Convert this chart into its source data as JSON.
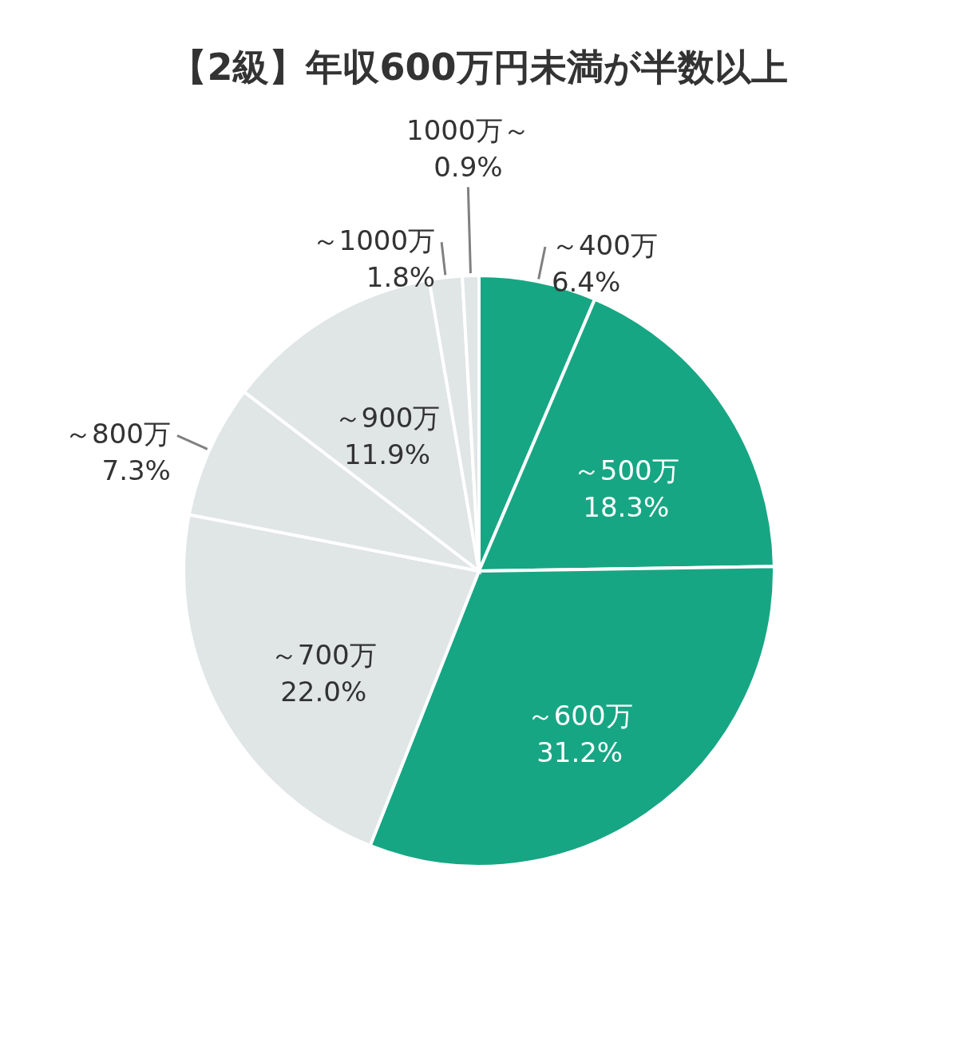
{
  "chart_data": {
    "type": "pie",
    "title": "【2級】年収600万円未満が半数以上",
    "categories": [
      "～400万",
      "～500万",
      "～600万",
      "～700万",
      "～800万",
      "～900万",
      "～1000万",
      "1000万～"
    ],
    "values": [
      6.4,
      18.3,
      31.2,
      22.0,
      7.3,
      11.9,
      1.8,
      0.9
    ],
    "value_labels": [
      "6.4%",
      "18.3%",
      "31.2%",
      "22.0%",
      "7.3%",
      "11.9%",
      "1.8%",
      "0.9%"
    ],
    "colors": [
      "#17a683",
      "#17a683",
      "#17a683",
      "#e0e5e6",
      "#e0e5e6",
      "#e0e5e6",
      "#e0e5e6",
      "#e0e5e6"
    ],
    "legend": false
  }
}
